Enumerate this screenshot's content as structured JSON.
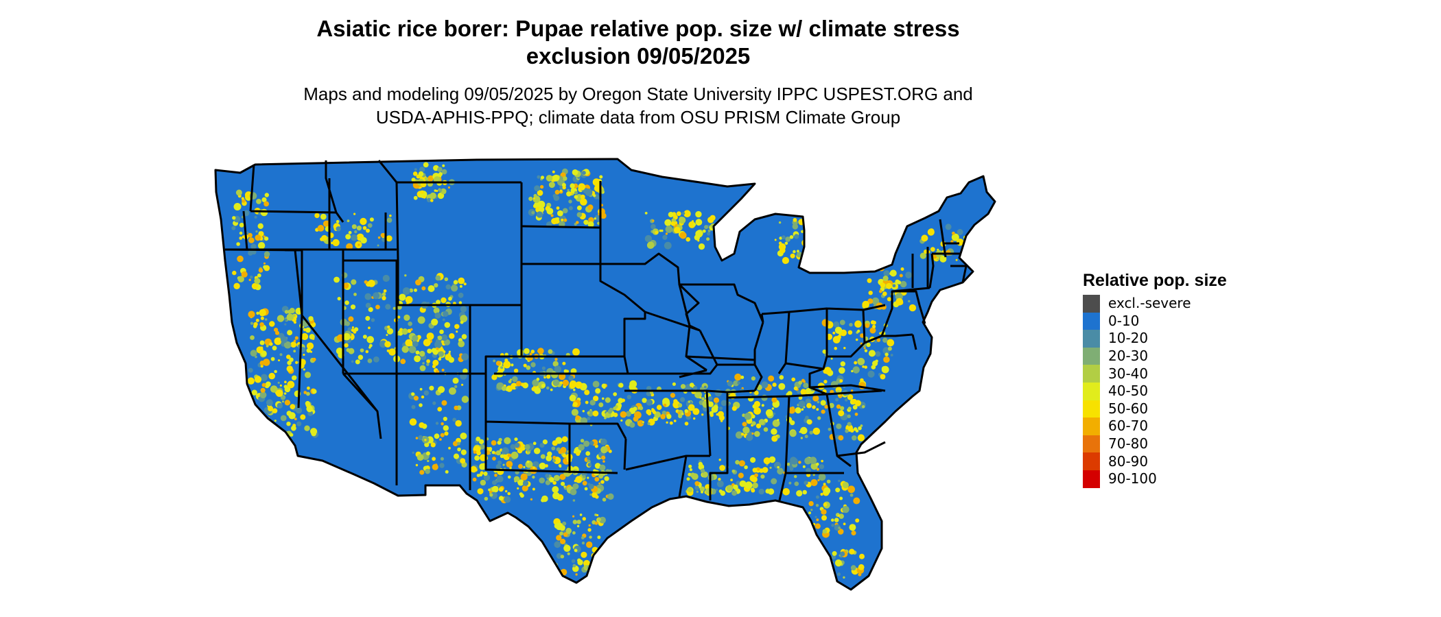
{
  "title": {
    "line1": "Asiatic rice borer: Pupae relative pop. size w/ climate stress",
    "line2": "exclusion 09/05/2025"
  },
  "subtitle": {
    "line1": "Maps and modeling 09/05/2025 by Oregon State University IPPC USPEST.ORG and",
    "line2": "USDA-APHIS-PPQ; climate data from OSU PRISM Climate Group"
  },
  "legend": {
    "title": "Relative pop. size",
    "items": [
      {
        "label": "excl.-severe",
        "color": "#4d4d4d"
      },
      {
        "label": "0-10",
        "color": "#1e73cf"
      },
      {
        "label": "10-20",
        "color": "#4a8ca6"
      },
      {
        "label": "20-30",
        "color": "#7fae74"
      },
      {
        "label": "30-40",
        "color": "#b2ce44"
      },
      {
        "label": "40-50",
        "color": "#e1ec1c"
      },
      {
        "label": "50-60",
        "color": "#f7e100"
      },
      {
        "label": "60-70",
        "color": "#f2ae00"
      },
      {
        "label": "70-80",
        "color": "#e8730a"
      },
      {
        "label": "80-90",
        "color": "#dc3b00"
      },
      {
        "label": "90-100",
        "color": "#d40000"
      }
    ]
  },
  "map": {
    "region": "contiguous-united-states",
    "base_color": "#1e73cf",
    "border_color": "#000000"
  }
}
